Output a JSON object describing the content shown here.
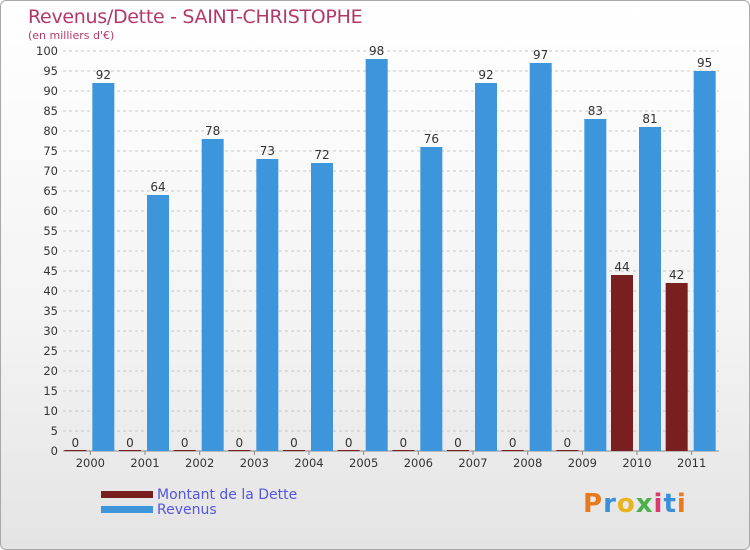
{
  "title": "Revenus/Dette - SAINT-CHRISTOPHE",
  "subtitle": "(en milliers d'€)",
  "logo": {
    "text": "Proxiti",
    "colors": [
      "#e87a1e",
      "#3a8fd8",
      "#e8b41e",
      "#4ab04a",
      "#d83a6a",
      "#3a8fd8",
      "#e87a1e"
    ]
  },
  "colors": {
    "dette": "#7a1f1f",
    "revenus": "#3d96dc",
    "title": "#b3386a",
    "legend_text": "#5555dd"
  },
  "chart_data": {
    "type": "bar",
    "title": "Revenus/Dette - SAINT-CHRISTOPHE",
    "subtitle": "(en milliers d'€)",
    "categories": [
      "2000",
      "2001",
      "2002",
      "2003",
      "2004",
      "2005",
      "2006",
      "2007",
      "2008",
      "2009",
      "2010",
      "2011"
    ],
    "series": [
      {
        "name": "Montant de la Dette",
        "color": "#7a1f1f",
        "values": [
          0,
          0,
          0,
          0,
          0,
          0,
          0,
          0,
          0,
          0,
          44,
          42
        ]
      },
      {
        "name": "Revenus",
        "color": "#3d96dc",
        "values": [
          92,
          64,
          78,
          73,
          72,
          98,
          76,
          92,
          97,
          83,
          81,
          95
        ]
      }
    ],
    "ylim": [
      0,
      100
    ],
    "yticks": [
      0,
      5,
      10,
      15,
      20,
      25,
      30,
      35,
      40,
      45,
      50,
      55,
      60,
      65,
      70,
      75,
      80,
      85,
      90,
      95,
      100
    ],
    "grid": true,
    "legend": "bottom-left"
  }
}
